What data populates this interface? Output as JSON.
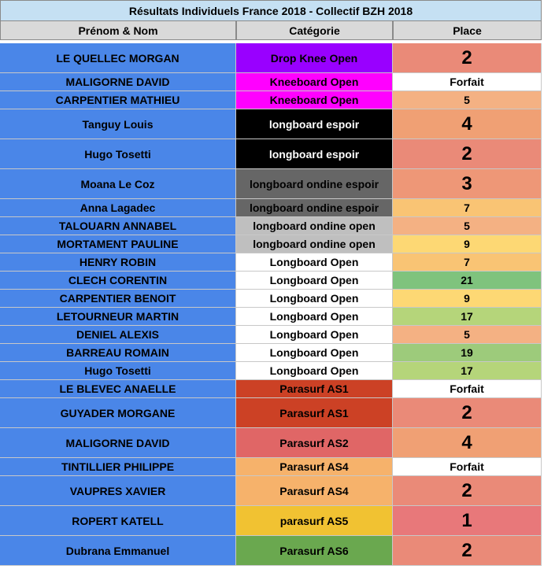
{
  "title": "Résultats Individuels France 2018 - Collectif BZH 2018",
  "headers": {
    "name": "Prénom & Nom",
    "category": "Catégorie",
    "place": "Place"
  },
  "rows": [
    {
      "name": "LE QUELLEC MORGAN",
      "category": "Drop Knee Open",
      "place": "2"
    },
    {
      "name": "MALIGORNE DAVID",
      "category": "Kneeboard Open",
      "place": "Forfait"
    },
    {
      "name": "CARPENTIER MATHIEU",
      "category": "Kneeboard Open",
      "place": "5"
    },
    {
      "name": "Tanguy Louis",
      "category": "longboard espoir",
      "place": "4"
    },
    {
      "name": "Hugo Tosetti",
      "category": "longboard espoir",
      "place": "2"
    },
    {
      "name": "Moana Le Coz",
      "category": "longboard ondine espoir",
      "place": "3"
    },
    {
      "name": "Anna Lagadec",
      "category": "longboard ondine espoir",
      "place": "7"
    },
    {
      "name": "TALOUARN ANNABEL",
      "category": "longboard ondine open",
      "place": "5"
    },
    {
      "name": "MORTAMENT PAULINE",
      "category": "longboard ondine open",
      "place": "9"
    },
    {
      "name": "HENRY ROBIN",
      "category": "Longboard Open",
      "place": "7"
    },
    {
      "name": "CLECH CORENTIN",
      "category": "Longboard Open",
      "place": "21"
    },
    {
      "name": "CARPENTIER BENOIT",
      "category": "Longboard Open",
      "place": "9"
    },
    {
      "name": "LETOURNEUR MARTIN",
      "category": "Longboard Open",
      "place": "17"
    },
    {
      "name": "DENIEL ALEXIS",
      "category": "Longboard Open",
      "place": "5"
    },
    {
      "name": "BARREAU ROMAIN",
      "category": "Longboard Open",
      "place": "19"
    },
    {
      "name": "Hugo Tosetti",
      "category": "Longboard Open",
      "place": "17"
    },
    {
      "name": "LE BLEVEC ANAELLE",
      "category": "Parasurf AS1",
      "place": "Forfait"
    },
    {
      "name": "GUYADER MORGANE",
      "category": "Parasurf AS1",
      "place": "2"
    },
    {
      "name": "MALIGORNE DAVID",
      "category": "Parasurf AS2",
      "place": "4"
    },
    {
      "name": "TINTILLIER PHILIPPE",
      "category": "Parasurf AS4",
      "place": "Forfait"
    },
    {
      "name": "VAUPRES XAVIER",
      "category": "Parasurf AS4",
      "place": "2"
    },
    {
      "name": "ROPERT KATELL",
      "category": "parasurf AS5",
      "place": "1"
    },
    {
      "name": "Dubrana Emmanuel",
      "category": "Parasurf AS6",
      "place": "2"
    }
  ],
  "colors": {
    "name_bg": "#4a86e8",
    "header_title_bg": "#c5e0f3",
    "header_bg": "#d9d9d9",
    "category_bg": [
      "#9900ff",
      "#ff00ff",
      "#ff00ff",
      "#000000",
      "#000000",
      "#666666",
      "#666666",
      "#bfbfbf",
      "#bfbfbf",
      "#ffffff",
      "#ffffff",
      "#ffffff",
      "#ffffff",
      "#ffffff",
      "#ffffff",
      "#ffffff",
      "#cc4125",
      "#cc4125",
      "#e06666",
      "#f6b26b",
      "#f6b26b",
      "#f1c232",
      "#6aa84f"
    ],
    "category_fg": [
      "#000000",
      "#000000",
      "#000000",
      "#ffffff",
      "#ffffff",
      "#000000",
      "#000000",
      "#000000",
      "#000000",
      "#000000",
      "#000000",
      "#000000",
      "#000000",
      "#000000",
      "#000000",
      "#000000",
      "#000000",
      "#000000",
      "#000000",
      "#000000",
      "#000000",
      "#000000",
      "#000000"
    ],
    "place_bg": [
      "#ea8a78",
      "#ffffff",
      "#f4b183",
      "#f0a074",
      "#ea8a78",
      "#ee9777",
      "#f9c474",
      "#f4b183",
      "#fdd874",
      "#f9c474",
      "#7fc37d",
      "#fdd874",
      "#b5d57a",
      "#f4b183",
      "#9dcb7b",
      "#b5d57a",
      "#ffffff",
      "#ea8a78",
      "#f0a074",
      "#ffffff",
      "#ea8a78",
      "#e8787a",
      "#ea8a78"
    ]
  }
}
